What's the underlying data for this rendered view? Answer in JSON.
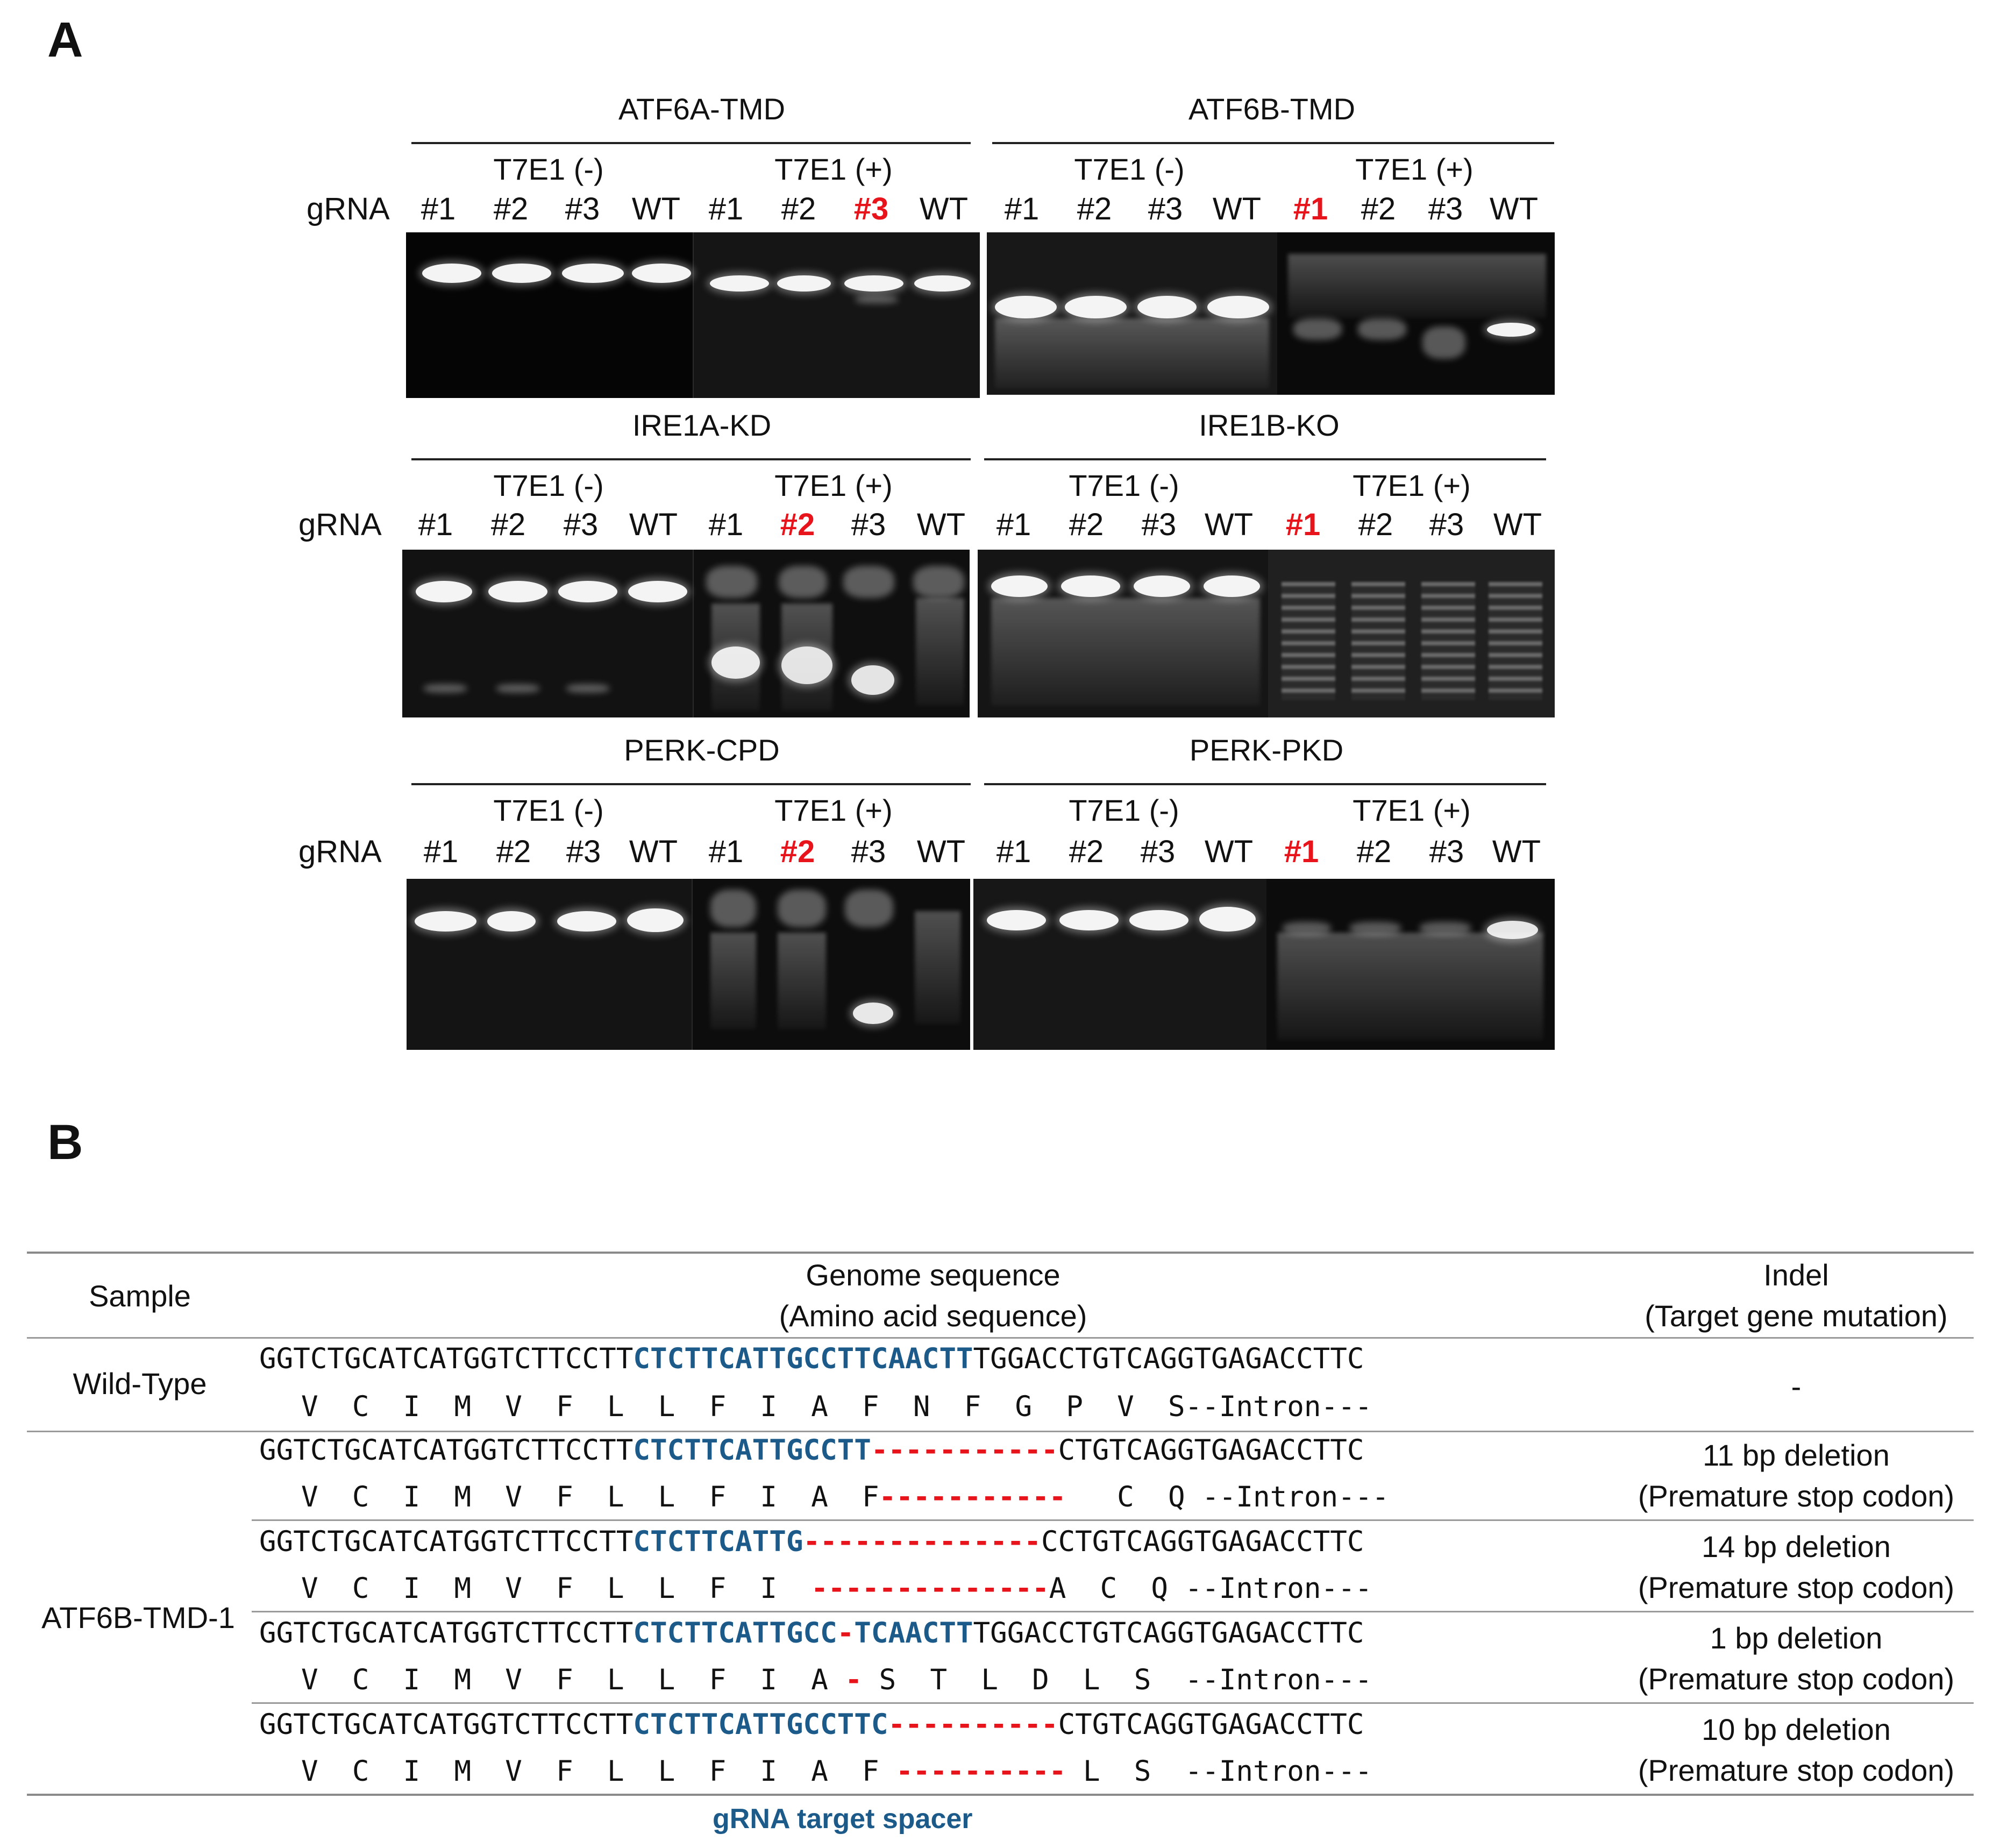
{
  "panel_a": {
    "letter": "A",
    "gRNA_label": "gRNA",
    "conditions": {
      "minus": "T7E1 (-)",
      "plus": "T7E1 (+)"
    },
    "lanes": [
      "#1",
      "#2",
      "#3",
      "WT"
    ],
    "gels": [
      {
        "title": "ATF6A-TMD",
        "selected_lane": "#3"
      },
      {
        "title": "ATF6B-TMD",
        "selected_lane": "#1"
      },
      {
        "title": "IRE1A-KD",
        "selected_lane": "#2"
      },
      {
        "title": "IRE1B-KO",
        "selected_lane": "#1"
      },
      {
        "title": "PERK-CPD",
        "selected_lane": "#2"
      },
      {
        "title": "PERK-PKD",
        "selected_lane": "#1"
      }
    ]
  },
  "panel_b": {
    "letter": "B",
    "headers": {
      "sample": "Sample",
      "sequence_line1": "Genome sequence",
      "sequence_line2": "(Amino acid sequence)",
      "indel_line1": "Indel",
      "indel_line2": "(Target gene mutation)"
    },
    "wild_type": {
      "sample": "Wild-Type",
      "dna_prefix": "GGTCTGCATCATGGTCTTCCTT",
      "dna_spacer": "CTCTTCATTGCCTTCAACTT",
      "dna_suffix": "TGGACCTGTCAGGTGAGACCTTC",
      "aa": "V  C  I  M  V  F  L  L  F  I  A  F  N  F  G  P  V  S--Intron---",
      "indel": "-"
    },
    "mutant_sample": "ATF6B-TMD-1",
    "mutants": [
      {
        "dna_prefix": "GGTCTGCATCATGGTCTTCCTT",
        "dna_spacer": "CTCTTCATTGCCTT",
        "dna_del": "-----------",
        "dna_suffix": "CTGTCAGGTGAGACCTTC",
        "aa_prefix": "V  C  I  M  V  F  L  L  F  I  A  F",
        "aa_del": "-----------",
        "aa_suffix": "   C  Q --Intron---",
        "indel_line1": "11 bp deletion",
        "indel_line2": "(Premature stop codon)"
      },
      {
        "dna_prefix": "GGTCTGCATCATGGTCTTCCTT",
        "dna_spacer": "CTCTTCATTG",
        "dna_del": "--------------",
        "dna_suffix": "CCTGTCAGGTGAGACCTTC",
        "aa_prefix": "V  C  I  M  V  F  L  L  F  I  ",
        "aa_del": "--------------",
        "aa_suffix": "A  C  Q --Intron---",
        "indel_line1": "14 bp deletion",
        "indel_line2": "(Premature stop codon)"
      },
      {
        "dna_prefix": "GGTCTGCATCATGGTCTTCCTT",
        "dna_spacer": "CTCTTCATTGCC",
        "dna_del": "-",
        "dna_spacer2": "TCAACTT",
        "dna_suffix": "TGGACCTGTCAGGTGAGACCTTC",
        "aa_prefix": "V  C  I  M  V  F  L  L  F  I  A ",
        "aa_del": "-",
        "aa_suffix": " S  T  L  D  L  S  --Intron---",
        "indel_line1": "1 bp deletion",
        "indel_line2": "(Premature stop codon)"
      },
      {
        "dna_prefix": "GGTCTGCATCATGGTCTTCCTT",
        "dna_spacer": "CTCTTCATTGCCTTC",
        "dna_del": "----------",
        "dna_suffix": "CTGTCAGGTGAGACCTTC",
        "aa_prefix": "V  C  I  M  V  F  L  L  F  I  A  F ",
        "aa_del": "----------",
        "aa_suffix": " L  S  --Intron---",
        "indel_line1": "10 bp deletion",
        "indel_line2": "(Premature stop codon)"
      }
    ],
    "caption": "gRNA target spacer",
    "colors": {
      "spacer": "#1c5a8a",
      "deletion": "#e8141b",
      "highlight": "#e8141b"
    }
  }
}
